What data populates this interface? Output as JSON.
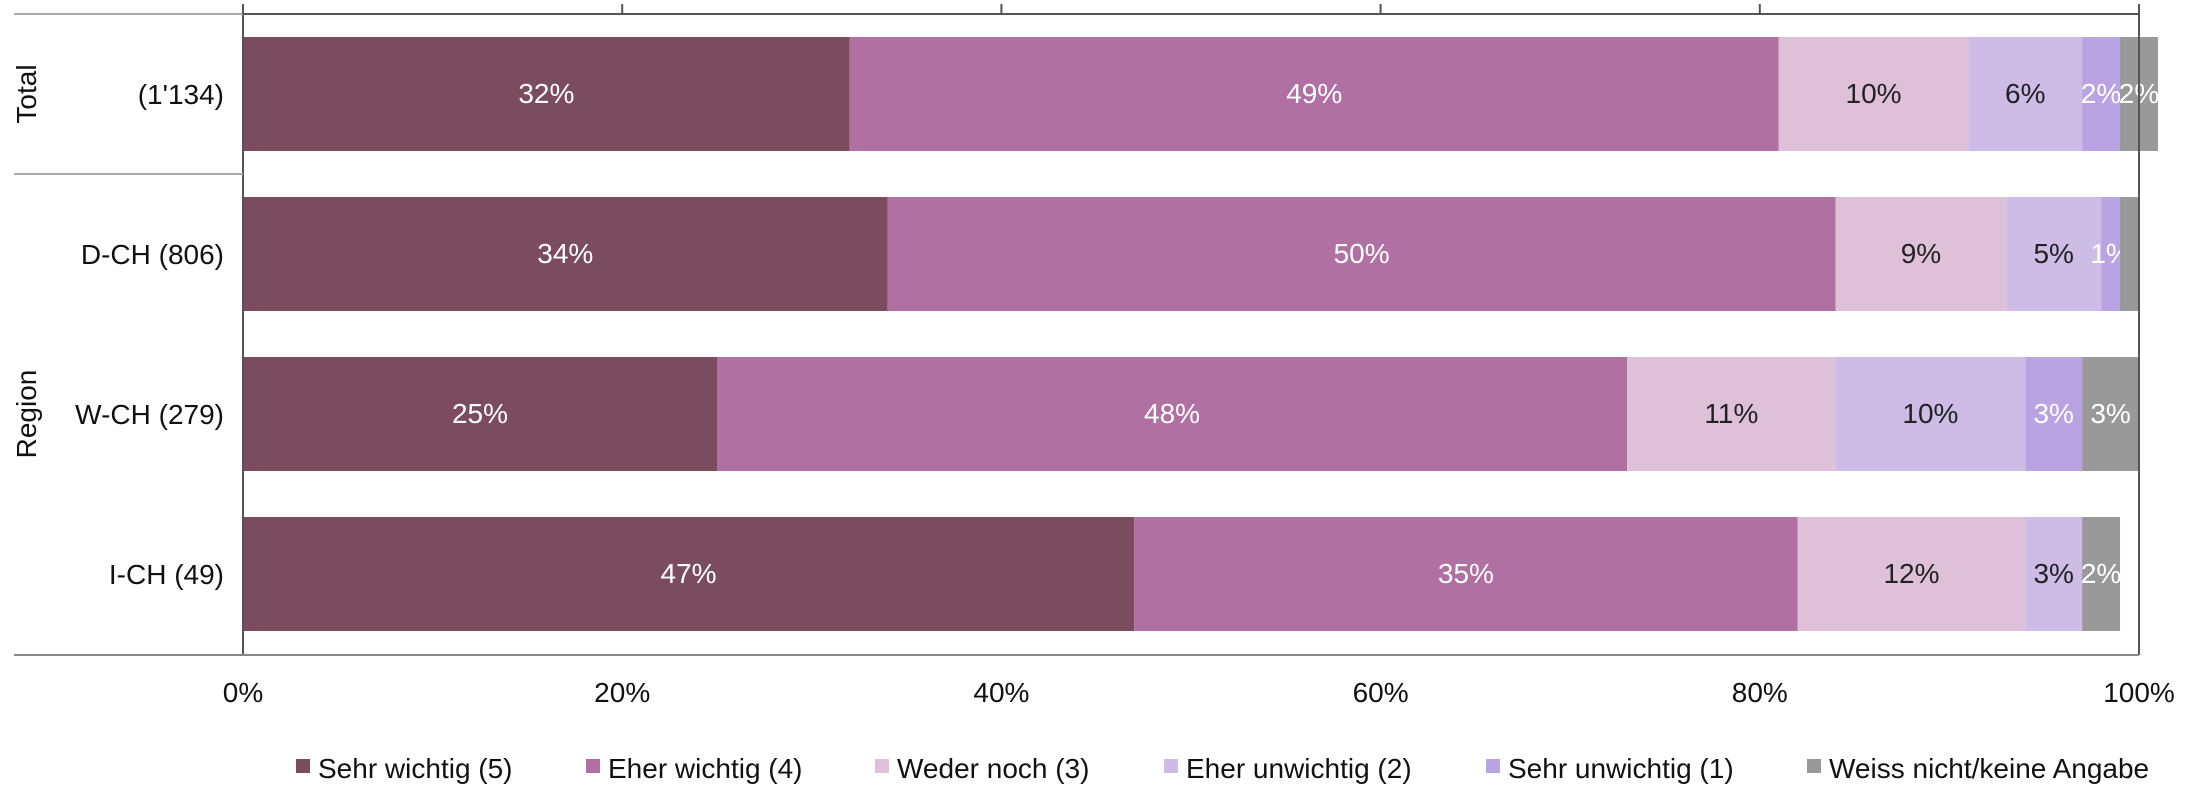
{
  "chart_data": {
    "type": "bar",
    "orientation": "horizontal",
    "stacked": true,
    "title": "",
    "xlabel": "",
    "ylabel": "",
    "xlim": [
      0,
      100
    ],
    "x_ticks": [
      "0%",
      "20%",
      "40%",
      "60%",
      "80%",
      "100%"
    ],
    "groups": [
      {
        "label": "Total",
        "rows": [
          0
        ]
      },
      {
        "label": "Region",
        "rows": [
          1,
          2,
          3
        ]
      }
    ],
    "categories": [
      "(1'134)",
      "D-CH (806)",
      "W-CH (279)",
      "I-CH (49)"
    ],
    "series": [
      {
        "name": "Sehr wichtig (5)",
        "color": "#7B4B5E",
        "label_color": "#ffffff",
        "values": [
          32,
          34,
          25,
          47
        ],
        "labels": [
          "32%",
          "34%",
          "25%",
          "47%"
        ]
      },
      {
        "name": "Eher wichtig (4)",
        "color": "#B170A2",
        "label_color": "#ffffff",
        "values": [
          49,
          50,
          48,
          35
        ],
        "labels": [
          "49%",
          "50%",
          "48%",
          "35%"
        ]
      },
      {
        "name": "Weder noch (3)",
        "color": "#DEC1D8",
        "label_color": "#222222",
        "values": [
          10,
          9,
          11,
          12
        ],
        "labels": [
          "10%",
          "9%",
          "11%",
          "12%"
        ]
      },
      {
        "name": "Eher unwichtig (2)",
        "color": "#CDBCE6",
        "label_color": "#222222",
        "values": [
          6,
          5,
          10,
          3
        ],
        "labels": [
          "6%",
          "5%",
          "10%",
          "3%"
        ]
      },
      {
        "name": "Sehr unwichtig (1)",
        "color": "#B9A3E2",
        "label_color": "#ffffff",
        "values": [
          2,
          1,
          3,
          0
        ],
        "labels": [
          "2%",
          "1%",
          "3%",
          ""
        ]
      },
      {
        "name": "Weiss nicht/keine Angabe",
        "color": "#999999",
        "label_color": "#ffffff",
        "values": [
          2,
          1,
          3,
          2
        ],
        "labels": [
          "2%",
          "",
          "3%",
          "2%"
        ]
      }
    ],
    "legend_position": "bottom",
    "grid": false
  }
}
